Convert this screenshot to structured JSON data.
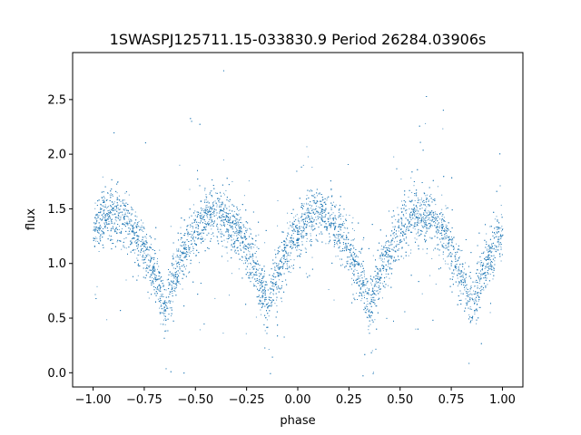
{
  "chart_data": {
    "type": "scatter",
    "title": "1SWASPJ125711.15-033830.9 Period 26284.03906s",
    "xlabel": "phase",
    "ylabel": "flux",
    "xlim": [
      -1.1,
      1.1
    ],
    "ylim": [
      -0.13,
      2.93
    ],
    "xticks": [
      -1.0,
      -0.75,
      -0.5,
      -0.25,
      0.0,
      0.25,
      0.5,
      0.75,
      1.0
    ],
    "xtick_labels": [
      "−1.00",
      "−0.75",
      "−0.50",
      "−0.25",
      "0.00",
      "0.25",
      "0.50",
      "0.75",
      "1.00"
    ],
    "yticks": [
      0.0,
      0.5,
      1.0,
      1.5,
      2.0,
      2.5
    ],
    "ytick_labels": [
      "0.0",
      "0.5",
      "1.0",
      "1.5",
      "2.0",
      "2.5"
    ],
    "grid": false,
    "legend": "none",
    "point_color": "#1f77b4",
    "series": [
      {
        "phase_range": [
          -1.0,
          1.0
        ],
        "shape": "double-humped sinusoid",
        "maxima_phases": [
          -0.9,
          -0.4,
          0.1,
          0.6
        ],
        "max_flux": 1.45,
        "minima_phases": [
          -0.65,
          -0.15,
          0.35,
          0.85
        ],
        "min_flux": 0.6,
        "scatter_std": 0.12,
        "approx_points": 30000,
        "visible_sample": [
          {
            "x": -1.0,
            "y": 1.35
          },
          {
            "x": -0.9,
            "y": 1.45
          },
          {
            "x": -0.75,
            "y": 1.2
          },
          {
            "x": -0.65,
            "y": 0.6
          },
          {
            "x": -0.5,
            "y": 1.35
          },
          {
            "x": -0.4,
            "y": 1.45
          },
          {
            "x": -0.25,
            "y": 1.2
          },
          {
            "x": -0.15,
            "y": 0.6
          },
          {
            "x": 0.0,
            "y": 1.35
          },
          {
            "x": 0.1,
            "y": 1.45
          },
          {
            "x": 0.25,
            "y": 1.2
          },
          {
            "x": 0.35,
            "y": 0.6
          },
          {
            "x": 0.5,
            "y": 1.35
          },
          {
            "x": 0.6,
            "y": 1.45
          },
          {
            "x": 0.75,
            "y": 1.2
          },
          {
            "x": 0.85,
            "y": 0.6
          },
          {
            "x": 1.0,
            "y": 1.35
          }
        ]
      }
    ]
  }
}
